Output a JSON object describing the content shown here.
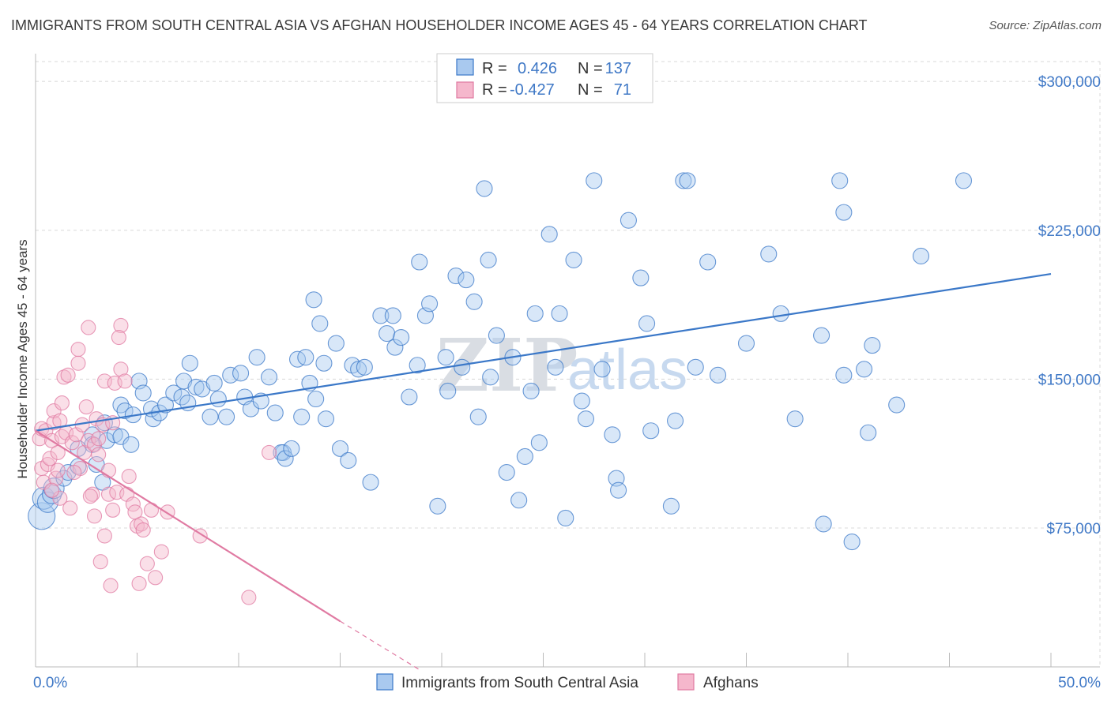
{
  "title": "IMMIGRANTS FROM SOUTH CENTRAL ASIA VS AFGHAN HOUSEHOLDER INCOME AGES 45 - 64 YEARS CORRELATION CHART",
  "source": "Source: ZipAtlas.com",
  "watermark": {
    "part1": "ZIP",
    "part2": "atlas"
  },
  "legend": {
    "rows": [
      {
        "r_label": "R =",
        "r_value": "0.426",
        "n_label": "N =",
        "n_value": "137"
      },
      {
        "r_label": "R =",
        "r_value": "-0.427",
        "n_label": "N =",
        "n_value": "71"
      }
    ]
  },
  "colors": {
    "blue": "#3b78c8",
    "blue_fill": "#a9c9ef",
    "pink": "#e07aa2",
    "pink_fill": "#f5b7cc",
    "tick": "#3f78c6",
    "grid": "#d8d8d8"
  },
  "chart_data": {
    "type": "scatter",
    "title": "IMMIGRANTS FROM SOUTH CENTRAL ASIA VS AFGHAN HOUSEHOLDER INCOME AGES 45 - 64 YEARS CORRELATION CHART",
    "xlabel": "",
    "ylabel": "Householder Income Ages 45 - 64 years",
    "xlim": [
      0,
      50
    ],
    "ylim": [
      5000,
      310000
    ],
    "x_tick_labels": [
      "0.0%",
      "50.0%"
    ],
    "y_ticks": [
      {
        "value": 75000,
        "label": "$75,000"
      },
      {
        "value": 150000,
        "label": "$150,000"
      },
      {
        "value": 225000,
        "label": "$225,000"
      },
      {
        "value": 300000,
        "label": "$300,000"
      }
    ],
    "grid": true,
    "legend_position": "top-center",
    "series": [
      {
        "name": "Immigrants from South Central Asia",
        "color": "#3b78c8",
        "trend": {
          "x": [
            0,
            50
          ],
          "y": [
            124000,
            203000
          ]
        },
        "points": [
          [
            0.3,
            81000
          ],
          [
            0.4,
            90000
          ],
          [
            0.6,
            88000
          ],
          [
            0.8,
            92000
          ],
          [
            0.9,
            95000
          ],
          [
            1.4,
            100000
          ],
          [
            1.6,
            103000
          ],
          [
            2.1,
            106000
          ],
          [
            2.1,
            115000
          ],
          [
            2.8,
            122000
          ],
          [
            3.0,
            107000
          ],
          [
            2.8,
            117000
          ],
          [
            3.4,
            128000
          ],
          [
            3.5,
            119000
          ],
          [
            3.3,
            98000
          ],
          [
            3.9,
            122000
          ],
          [
            4.2,
            137000
          ],
          [
            4.2,
            121000
          ],
          [
            4.7,
            117000
          ],
          [
            4.4,
            134000
          ],
          [
            4.8,
            132000
          ],
          [
            5.1,
            149000
          ],
          [
            5.3,
            143000
          ],
          [
            5.8,
            130000
          ],
          [
            5.7,
            135000
          ],
          [
            6.1,
            133000
          ],
          [
            6.4,
            137000
          ],
          [
            6.8,
            143000
          ],
          [
            7.2,
            141000
          ],
          [
            7.6,
            158000
          ],
          [
            7.3,
            149000
          ],
          [
            7.5,
            138000
          ],
          [
            7.9,
            146000
          ],
          [
            8.2,
            145000
          ],
          [
            8.6,
            131000
          ],
          [
            8.8,
            148000
          ],
          [
            9.0,
            140000
          ],
          [
            9.4,
            131000
          ],
          [
            9.6,
            152000
          ],
          [
            10.3,
            141000
          ],
          [
            10.1,
            153000
          ],
          [
            10.6,
            135000
          ],
          [
            10.9,
            161000
          ],
          [
            11.1,
            139000
          ],
          [
            11.5,
            151000
          ],
          [
            11.8,
            133000
          ],
          [
            12.2,
            113000
          ],
          [
            12.1,
            113000
          ],
          [
            12.3,
            110000
          ],
          [
            12.6,
            115000
          ],
          [
            12.9,
            160000
          ],
          [
            13.3,
            161000
          ],
          [
            13.5,
            148000
          ],
          [
            13.1,
            131000
          ],
          [
            13.7,
            190000
          ],
          [
            13.8,
            140000
          ],
          [
            14.2,
            158000
          ],
          [
            14.0,
            178000
          ],
          [
            14.3,
            130000
          ],
          [
            14.8,
            168000
          ],
          [
            15.0,
            115000
          ],
          [
            15.4,
            109000
          ],
          [
            15.6,
            157000
          ],
          [
            15.9,
            155000
          ],
          [
            16.2,
            156000
          ],
          [
            16.5,
            98000
          ],
          [
            17.0,
            182000
          ],
          [
            17.3,
            173000
          ],
          [
            17.6,
            182000
          ],
          [
            17.7,
            166000
          ],
          [
            18.0,
            171000
          ],
          [
            18.4,
            141000
          ],
          [
            18.8,
            157000
          ],
          [
            18.9,
            209000
          ],
          [
            19.2,
            182000
          ],
          [
            19.4,
            188000
          ],
          [
            19.8,
            86000
          ],
          [
            20.2,
            161000
          ],
          [
            20.3,
            144000
          ],
          [
            20.7,
            202000
          ],
          [
            21.0,
            156000
          ],
          [
            21.2,
            200000
          ],
          [
            21.6,
            189000
          ],
          [
            21.8,
            131000
          ],
          [
            22.1,
            246000
          ],
          [
            22.3,
            210000
          ],
          [
            22.4,
            151000
          ],
          [
            22.7,
            172000
          ],
          [
            23.2,
            103000
          ],
          [
            23.5,
            161000
          ],
          [
            23.8,
            89000
          ],
          [
            24.1,
            111000
          ],
          [
            24.4,
            144000
          ],
          [
            24.6,
            183000
          ],
          [
            24.8,
            118000
          ],
          [
            25.3,
            223000
          ],
          [
            25.8,
            183000
          ],
          [
            25.6,
            156000
          ],
          [
            26.1,
            80000
          ],
          [
            26.5,
            210000
          ],
          [
            26.9,
            139000
          ],
          [
            27.1,
            130000
          ],
          [
            27.5,
            250000
          ],
          [
            27.9,
            155000
          ],
          [
            28.4,
            122000
          ],
          [
            28.6,
            100000
          ],
          [
            28.7,
            94000
          ],
          [
            29.2,
            230000
          ],
          [
            29.8,
            201000
          ],
          [
            30.1,
            178000
          ],
          [
            30.3,
            124000
          ],
          [
            31.5,
            129000
          ],
          [
            31.3,
            86000
          ],
          [
            31.9,
            250000
          ],
          [
            32.1,
            250000
          ],
          [
            32.5,
            156000
          ],
          [
            33.1,
            209000
          ],
          [
            33.6,
            152000
          ],
          [
            35.0,
            168000
          ],
          [
            36.1,
            213000
          ],
          [
            36.7,
            183000
          ],
          [
            37.4,
            130000
          ],
          [
            38.7,
            172000
          ],
          [
            38.8,
            77000
          ],
          [
            39.8,
            152000
          ],
          [
            39.6,
            250000
          ],
          [
            39.8,
            234000
          ],
          [
            40.2,
            68000
          ],
          [
            40.8,
            155000
          ],
          [
            41.0,
            123000
          ],
          [
            41.2,
            167000
          ],
          [
            42.4,
            137000
          ],
          [
            43.6,
            212000
          ],
          [
            45.7,
            250000
          ]
        ]
      },
      {
        "name": "Afghans",
        "color": "#e07aa2",
        "trend": {
          "x": [
            0,
            15
          ],
          "y": [
            124000,
            28000
          ]
        },
        "trend_dashed": {
          "x": [
            15,
            19
          ],
          "y": [
            28000,
            3000
          ]
        },
        "points": [
          [
            0.2,
            120000
          ],
          [
            0.3,
            105000
          ],
          [
            0.4,
            98000
          ],
          [
            0.3,
            125000
          ],
          [
            0.5,
            124000
          ],
          [
            0.6,
            107000
          ],
          [
            0.7,
            110000
          ],
          [
            0.8,
            119000
          ],
          [
            0.9,
            128000
          ],
          [
            0.9,
            134000
          ],
          [
            1.0,
            100000
          ],
          [
            1.1,
            104000
          ],
          [
            1.1,
            113000
          ],
          [
            1.2,
            129000
          ],
          [
            1.3,
            138000
          ],
          [
            1.3,
            121000
          ],
          [
            1.2,
            90000
          ],
          [
            1.4,
            151000
          ],
          [
            1.5,
            123000
          ],
          [
            1.6,
            152000
          ],
          [
            1.7,
            85000
          ],
          [
            1.8,
            118000
          ],
          [
            2.0,
            122000
          ],
          [
            2.1,
            165000
          ],
          [
            2.1,
            158000
          ],
          [
            2.2,
            105000
          ],
          [
            2.3,
            127000
          ],
          [
            2.4,
            113000
          ],
          [
            2.5,
            136000
          ],
          [
            2.6,
            119000
          ],
          [
            2.6,
            176000
          ],
          [
            2.8,
            92000
          ],
          [
            2.9,
            81000
          ],
          [
            2.9,
            117000
          ],
          [
            3.0,
            130000
          ],
          [
            3.1,
            112000
          ],
          [
            3.3,
            127000
          ],
          [
            3.4,
            71000
          ],
          [
            3.4,
            149000
          ],
          [
            3.2,
            58000
          ],
          [
            3.6,
            104000
          ],
          [
            3.6,
            92000
          ],
          [
            3.8,
            128000
          ],
          [
            3.9,
            148000
          ],
          [
            3.8,
            84000
          ],
          [
            4.0,
            93000
          ],
          [
            4.2,
            177000
          ],
          [
            4.2,
            155000
          ],
          [
            4.4,
            149000
          ],
          [
            4.5,
            92000
          ],
          [
            4.6,
            101000
          ],
          [
            4.8,
            87000
          ],
          [
            4.9,
            83000
          ],
          [
            5.0,
            76000
          ],
          [
            5.1,
            47000
          ],
          [
            5.2,
            77000
          ],
          [
            5.3,
            74000
          ],
          [
            5.5,
            57000
          ],
          [
            5.9,
            50000
          ],
          [
            6.2,
            63000
          ],
          [
            6.5,
            83000
          ],
          [
            8.1,
            71000
          ],
          [
            10.5,
            40000
          ],
          [
            11.5,
            113000
          ],
          [
            3.1,
            120000
          ],
          [
            1.9,
            103000
          ],
          [
            2.7,
            91000
          ],
          [
            4.1,
            171000
          ],
          [
            3.7,
            46000
          ],
          [
            5.7,
            84000
          ],
          [
            0.8,
            94000
          ]
        ]
      }
    ]
  },
  "bottom_legend": [
    {
      "label": "Immigrants from South Central Asia"
    },
    {
      "label": "Afghans"
    }
  ]
}
